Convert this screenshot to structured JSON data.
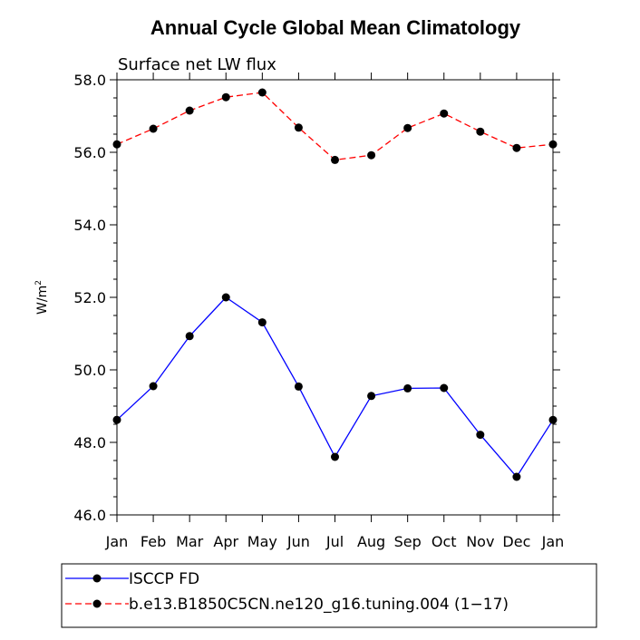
{
  "chart_data": {
    "type": "line",
    "title": "Annual Cycle Global Mean Climatology",
    "subtitle": "Surface net LW flux",
    "ylabel": "W/m",
    "ylabel_sup": "2",
    "categories": [
      "Jan",
      "Feb",
      "Mar",
      "Apr",
      "May",
      "Jun",
      "Jul",
      "Aug",
      "Sep",
      "Oct",
      "Nov",
      "Dec",
      "Jan"
    ],
    "ylim": [
      46.0,
      58.0
    ],
    "yticks": [
      "46.0",
      "48.0",
      "50.0",
      "52.0",
      "54.0",
      "56.0",
      "58.0"
    ],
    "series": [
      {
        "name": "ISCCP FD",
        "color": "#0000ff",
        "dash": "solid",
        "values": [
          48.62,
          49.55,
          50.93,
          52.0,
          51.31,
          49.54,
          47.6,
          49.28,
          49.49,
          49.5,
          48.21,
          47.05,
          48.62
        ]
      },
      {
        "name": "b.e13.B1850C5CN.ne120_g16.tuning.004 (1−17)",
        "color": "#ff0000",
        "dash": "dashed",
        "values": [
          56.22,
          56.65,
          57.15,
          57.52,
          57.65,
          56.68,
          55.79,
          55.92,
          56.67,
          57.07,
          56.57,
          56.12,
          56.22
        ]
      }
    ],
    "legend_position": "bottom",
    "grid": false
  }
}
